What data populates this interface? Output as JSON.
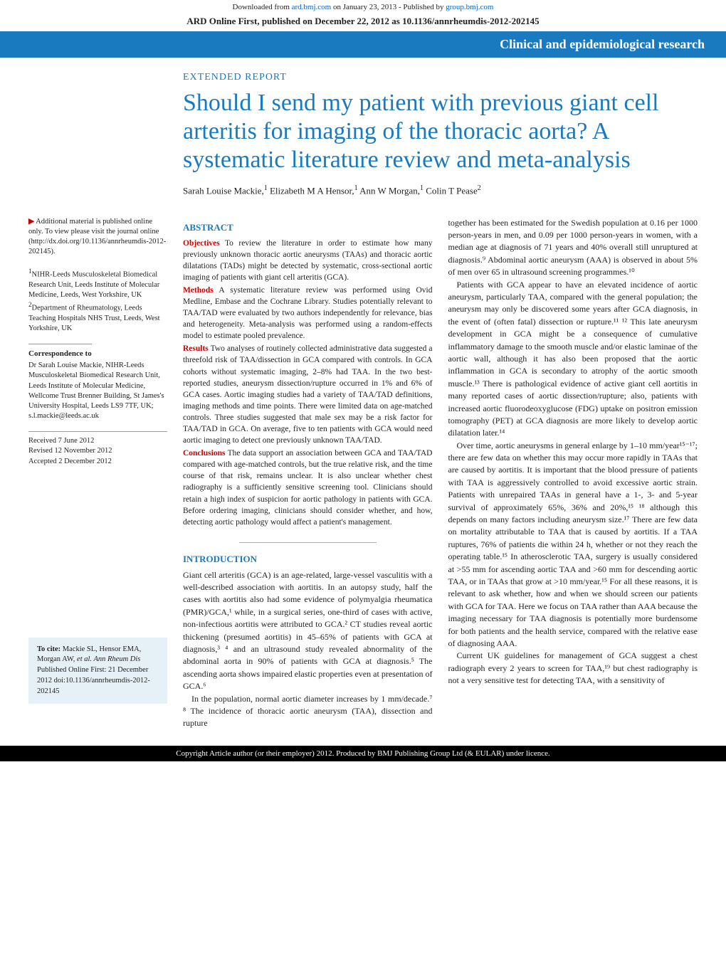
{
  "download_bar": {
    "prefix": "Downloaded from ",
    "link1": "ard.bmj.com",
    "mid": " on January 23, 2013 - Published by ",
    "link2": "group.bmj.com"
  },
  "ard_header": "ARD Online First, published on December 22, 2012 as 10.1136/annrheumdis-2012-202145",
  "banner": "Clinical and epidemiological research",
  "extended_report": "EXTENDED REPORT",
  "title": "Should I send my patient with previous giant cell arteritis for imaging of the thoracic aorta? A systematic literature review and meta-analysis",
  "authors_html": "Sarah Louise Mackie,¹ Elizabeth M A Hensor,¹ Ann W Morgan,¹ Colin T Pease²",
  "authors": [
    {
      "name": "Sarah Louise Mackie",
      "aff": "1"
    },
    {
      "name": "Elizabeth M A Hensor",
      "aff": "1"
    },
    {
      "name": "Ann W Morgan",
      "aff": "1"
    },
    {
      "name": "Colin T Pease",
      "aff": "2"
    }
  ],
  "sidebar": {
    "supp_note": "Additional material is published online only. To view please visit the journal online (http://dx.doi.org/10.1136/annrheumdis-2012-202145).",
    "affiliation1": "NIHR-Leeds Musculoskeletal Biomedical Research Unit, Leeds Institute of Molecular Medicine, Leeds, West Yorkshire, UK",
    "affiliation2": "Department of Rheumatology, Leeds Teaching Hospitals NHS Trust, Leeds, West Yorkshire, UK",
    "corr_head": "Correspondence to",
    "corr_body": "Dr Sarah Louise Mackie, NIHR-Leeds Musculoskeletal Biomedical Research Unit, Leeds Institute of Molecular Medicine, Wellcome Trust Brenner Building, St James's University Hospital, Leeds LS9 7TF, UK; s.l.mackie@leeds.ac.uk",
    "dates": {
      "received": "Received 7 June 2012",
      "revised": "Revised 12 November 2012",
      "accepted": "Accepted 2 December 2012"
    },
    "cite": {
      "lead": "To cite:",
      "body": " Mackie SL, Hensor EMA, Morgan AW, ",
      "italic": "et al. Ann Rheum Dis",
      "tail": " Published Online First: 21 December 2012 doi:10.1136/annrheumdis-2012-202145"
    }
  },
  "abstract": {
    "head": "ABSTRACT",
    "objectives_label": "Objectives",
    "objectives": " To review the literature in order to estimate how many previously unknown thoracic aortic aneurysms (TAAs) and thoracic aortic dilatations (TADs) might be detected by systematic, cross-sectional aortic imaging of patients with giant cell arteritis (GCA).",
    "methods_label": "Methods",
    "methods": " A systematic literature review was performed using Ovid Medline, Embase and the Cochrane Library. Studies potentially relevant to TAA/TAD were evaluated by two authors independently for relevance, bias and heterogeneity. Meta-analysis was performed using a random-effects model to estimate pooled prevalence.",
    "results_label": "Results",
    "results": " Two analyses of routinely collected administrative data suggested a threefold risk of TAA/dissection in GCA compared with controls. In GCA cohorts without systematic imaging, 2–8% had TAA. In the two best-reported studies, aneurysm dissection/rupture occurred in 1% and 6% of GCA cases. Aortic imaging studies had a variety of TAA/TAD definitions, imaging methods and time points. There were limited data on age-matched controls. Three studies suggested that male sex may be a risk factor for TAA/TAD in GCA. On average, five to ten patients with GCA would need aortic imaging to detect one previously unknown TAA/TAD.",
    "conclusions_label": "Conclusions",
    "conclusions": " The data support an association between GCA and TAA/TAD compared with age-matched controls, but the true relative risk, and the time course of that risk, remains unclear. It is also unclear whether chest radiography is a sufficiently sensitive screening tool. Clinicians should retain a high index of suspicion for aortic pathology in patients with GCA. Before ordering imaging, clinicians should consider whether, and how, detecting aortic pathology would affect a patient's management."
  },
  "introduction": {
    "head": "INTRODUCTION",
    "p1": "Giant cell arteritis (GCA) is an age-related, large-vessel vasculitis with a well-described association with aortitis. In an autopsy study, half the cases with aortitis also had some evidence of polymyalgia rheumatica (PMR)/GCA,¹ while, in a surgical series, one-third of cases with active, non-infectious aortitis were attributed to GCA.² CT studies reveal aortic thickening (presumed aortitis) in 45–65% of patients with GCA at diagnosis,³ ⁴ and an ultrasound study revealed abnormality of the abdominal aorta in 90% of patients with GCA at diagnosis.⁵ The ascending aorta shows impaired elastic properties even at presentation of GCA.⁶",
    "p2": "In the population, normal aortic diameter increases by 1 mm/decade.⁷ ⁸ The incidence of thoracic aortic aneurysm (TAA), dissection and rupture"
  },
  "right_col": {
    "p1": "together has been estimated for the Swedish population at 0.16 per 1000 person-years in men, and 0.09 per 1000 person-years in women, with a median age at diagnosis of 71 years and 40% overall still unruptured at diagnosis.⁹ Abdominal aortic aneurysm (AAA) is observed in about 5% of men over 65 in ultrasound screening programmes.¹⁰",
    "p2": "Patients with GCA appear to have an elevated incidence of aortic aneurysm, particularly TAA, compared with the general population; the aneurysm may only be discovered some years after GCA diagnosis, in the event of (often fatal) dissection or rupture.¹¹ ¹² This late aneurysm development in GCA might be a consequence of cumulative inflammatory damage to the smooth muscle and/or elastic laminae of the aortic wall, although it has also been proposed that the aortic inflammation in GCA is secondary to atrophy of the aortic smooth muscle.¹³ There is pathological evidence of active giant cell aortitis in many reported cases of aortic dissection/rupture; also, patients with increased aortic fluorodeoxyglucose (FDG) uptake on positron emission tomography (PET) at GCA diagnosis are more likely to develop aortic dilatation later.¹⁴",
    "p3": "Over time, aortic aneurysms in general enlarge by 1–10 mm/year¹⁵⁻¹⁷; there are few data on whether this may occur more rapidly in TAAs that are caused by aortitis. It is important that the blood pressure of patients with TAA is aggressively controlled to avoid excessive aortic strain. Patients with unrepaired TAAs in general have a 1-, 3- and 5-year survival of approximately 65%, 36% and 20%,¹⁵ ¹⁸ although this depends on many factors including aneurysm size.¹⁷ There are few data on mortality attributable to TAA that is caused by aortitis. If a TAA ruptures, 76% of patients die within 24 h, whether or not they reach the operating table.¹⁵ In atherosclerotic TAA, surgery is usually considered at >55 mm for ascending aortic TAA and >60 mm for descending aortic TAA, or in TAAs that grow at >10 mm/year.¹⁵ For all these reasons, it is relevant to ask whether, how and when we should screen our patients with GCA for TAA. Here we focus on TAA rather than AAA because the imaging necessary for TAA diagnosis is potentially more burdensome for both patients and the health service, compared with the relative ease of diagnosing AAA.",
    "p4": "Current UK guidelines for management of GCA suggest a chest radiograph every 2 years to screen for TAA,¹⁹ but chest radiography is not a very sensitive test for detecting TAA, with a sensitivity of"
  },
  "footer": "Copyright Article author (or their employer) 2012. Produced by BMJ Publishing Group Ltd (& EULAR) under licence.",
  "colors": {
    "banner_bg": "#1a7abf",
    "accent": "#1a7abf",
    "red": "#cc0000",
    "link": "#0066cc",
    "citebox_bg": "#e6f0f7",
    "footer_bg": "#000000"
  }
}
